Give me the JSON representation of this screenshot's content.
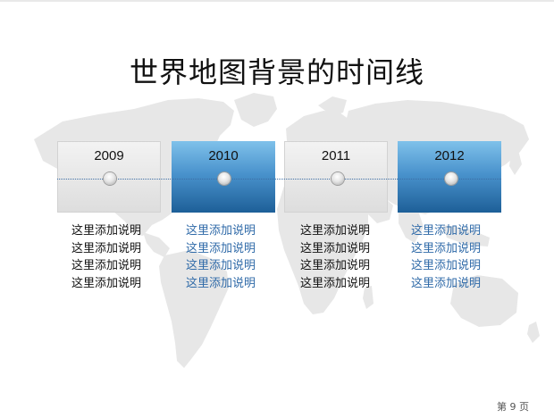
{
  "title": "世界地图背景的时间线",
  "timeline": [
    {
      "year": "2009",
      "style": "gray",
      "lines": [
        "这里添加说明",
        "这里添加说明",
        "这里添加说明",
        "这里添加说明"
      ]
    },
    {
      "year": "2010",
      "style": "blue",
      "lines": [
        "这里添加说明",
        "这里添加说明",
        "这里添加说明",
        "这里添加说明"
      ]
    },
    {
      "year": "2011",
      "style": "gray",
      "lines": [
        "这里添加说明",
        "这里添加说明",
        "这里添加说明",
        "这里添加说明"
      ]
    },
    {
      "year": "2012",
      "style": "blue",
      "lines": [
        "这里添加说明",
        "这里添加说明",
        "这里添加说明",
        "这里添加说明"
      ]
    }
  ],
  "page_label": "第 9 页",
  "colors": {
    "gray_box": "#e2e2e2",
    "blue_box": "#3b86c6",
    "blue_text": "#2f6aa8",
    "axis": "#3d6fa6",
    "map": "#e6e6e6"
  }
}
